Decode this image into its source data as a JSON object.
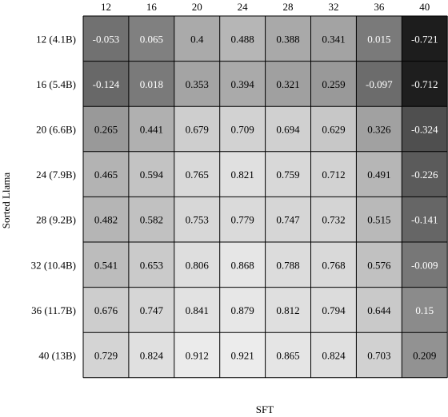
{
  "chart_data": {
    "type": "heatmap",
    "title": "",
    "xlabel": "SFT",
    "ylabel": "Sorted Llama",
    "x_ticks": [
      "12",
      "16",
      "20",
      "24",
      "28",
      "32",
      "36",
      "40"
    ],
    "y_ticks": [
      "12 (4.1B)",
      "16 (5.4B)",
      "20 (6.6B)",
      "24 (7.9B)",
      "28 (9.2B)",
      "32 (10.4B)",
      "36 (11.7B)",
      "40 (13B)"
    ],
    "values": [
      [
        "-0.053",
        "0.065",
        "0.4",
        "0.488",
        "0.388",
        "0.341",
        "0.015",
        "-0.721"
      ],
      [
        "-0.124",
        "0.018",
        "0.353",
        "0.394",
        "0.321",
        "0.259",
        "-0.097",
        "-0.712"
      ],
      [
        "0.265",
        "0.441",
        "0.679",
        "0.709",
        "0.694",
        "0.629",
        "0.326",
        "-0.324"
      ],
      [
        "0.465",
        "0.594",
        "0.765",
        "0.821",
        "0.759",
        "0.712",
        "0.491",
        "-0.226"
      ],
      [
        "0.482",
        "0.582",
        "0.753",
        "0.779",
        "0.747",
        "0.732",
        "0.515",
        "-0.141"
      ],
      [
        "0.541",
        "0.653",
        "0.806",
        "0.868",
        "0.788",
        "0.768",
        "0.576",
        "-0.009"
      ],
      [
        "0.676",
        "0.747",
        "0.841",
        "0.879",
        "0.812",
        "0.794",
        "0.644",
        "0.15"
      ],
      [
        "0.729",
        "0.824",
        "0.912",
        "0.921",
        "0.865",
        "0.824",
        "0.703",
        "0.209"
      ]
    ],
    "colormap": "gray",
    "color_range": [
      -0.75,
      0.95
    ],
    "grid": true
  }
}
